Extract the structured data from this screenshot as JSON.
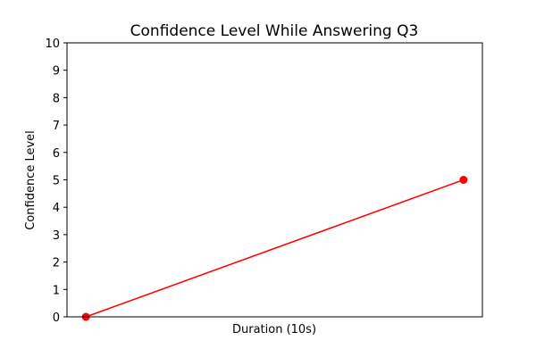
{
  "chart_data": {
    "type": "line",
    "title": "Confidence Level While Answering Q3",
    "xlabel": "Duration (10s)",
    "ylabel": "Confidence Level",
    "x": [
      0,
      1
    ],
    "series": [
      {
        "values": [
          0,
          5
        ],
        "color": "#ff0000",
        "marker": "circle"
      }
    ],
    "ylim": [
      0,
      10
    ],
    "yticks": [
      0,
      1,
      2,
      3,
      4,
      5,
      6,
      7,
      8,
      9,
      10
    ],
    "xticks_shown": false,
    "grid": false
  }
}
